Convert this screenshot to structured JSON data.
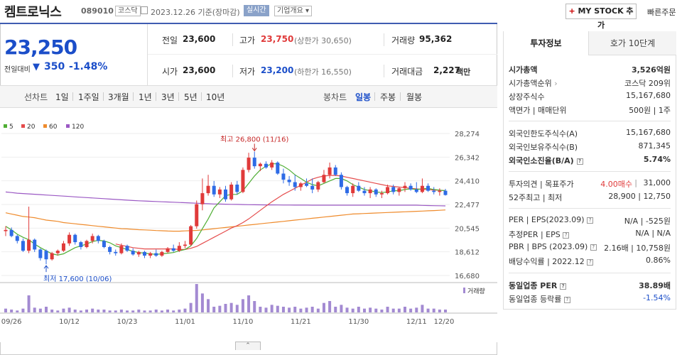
{
  "header": {
    "stock_name": "켐트로닉스",
    "stock_code": "089010",
    "market": "코스닥",
    "date_text": "2023.12.26 기준(장마감)",
    "realtime": "실시간",
    "company_overview": "기업개요 ▾",
    "mystock_plus": "+",
    "mystock": " MY STOCK 추가",
    "quick_order": "빠른주문"
  },
  "price": {
    "current": "23,250",
    "prev_diff_label": "전일대비",
    "arrow": "▼",
    "change": "350",
    "change_pct": "-1.48%"
  },
  "quote": {
    "prev_close_label": "전일",
    "prev_close": "23,600",
    "high_label": "고가",
    "high": "23,750",
    "upper_limit": "(상한가 30,650)",
    "volume_label": "거래량",
    "volume": "95,362",
    "open_label": "시가",
    "open": "23,600",
    "low_label": "저가",
    "low": "23,200",
    "lower_limit": "(하한가 16,550)",
    "amount_label": "거래대금",
    "amount": "2,227",
    "amount_unit": "백만"
  },
  "periods": {
    "line_chart": "선차트",
    "line_items": [
      "1일",
      "1주일",
      "3개월",
      "1년",
      "3년",
      "5년",
      "10년"
    ],
    "candle_chart": "봉차트",
    "candle_items": [
      "일봉",
      "주봉",
      "월봉"
    ]
  },
  "colors": {
    "up": "#e03a3a",
    "down": "#2e6be6",
    "accent": "#3f5cb1",
    "ma5": "#4fae34",
    "ma20": "#e54b4b",
    "ma60": "#ef8b2c",
    "ma120": "#9b59c4",
    "volume": "#a38ad2"
  },
  "chart_data": {
    "type": "candlestick",
    "legend": [
      "5",
      "20",
      "60",
      "120"
    ],
    "y_ticks": [
      "28,274",
      "26,342",
      "24,410",
      "22,477",
      "20,545",
      "18,612",
      "16,680"
    ],
    "ylim": [
      16680,
      28274
    ],
    "x_labels": [
      "09/26",
      "10/12",
      "10/23",
      "11/01",
      "11/10",
      "11/21",
      "11/30",
      "12/11",
      "12/20"
    ],
    "high_annotation": "최고 26,800 (11/16)",
    "low_annotation": "최저 17,600 (10/06)",
    "volume_label": "거래량",
    "candles": [
      [
        20300,
        20700,
        19900,
        20400
      ],
      [
        20400,
        20600,
        19800,
        19900
      ],
      [
        19900,
        20000,
        19300,
        19500
      ],
      [
        19500,
        19700,
        18600,
        18700
      ],
      [
        18700,
        22300,
        18500,
        19600
      ],
      [
        19600,
        19700,
        18600,
        18800
      ],
      [
        18800,
        18900,
        17900,
        18100
      ],
      [
        18700,
        18800,
        17600,
        18000
      ],
      [
        18000,
        18600,
        17900,
        18500
      ],
      [
        18500,
        18800,
        18300,
        18700
      ],
      [
        18700,
        19500,
        18600,
        19300
      ],
      [
        19300,
        20200,
        19100,
        20000
      ],
      [
        20000,
        20100,
        19200,
        19400
      ],
      [
        19400,
        19500,
        18800,
        19000
      ],
      [
        19000,
        19600,
        18900,
        19500
      ],
      [
        19500,
        20100,
        19300,
        19900
      ],
      [
        19900,
        20000,
        19300,
        19500
      ],
      [
        19500,
        19600,
        18900,
        19000
      ],
      [
        19000,
        19100,
        18400,
        18600
      ],
      [
        18600,
        18800,
        18300,
        18500
      ],
      [
        18500,
        19300,
        18400,
        19100
      ],
      [
        19100,
        19200,
        18600,
        18700
      ],
      [
        18700,
        18900,
        18300,
        18400
      ],
      [
        18400,
        18700,
        18200,
        18600
      ],
      [
        18600,
        18700,
        18100,
        18300
      ],
      [
        18300,
        18600,
        18100,
        18500
      ],
      [
        18500,
        18800,
        18200,
        18300
      ],
      [
        18300,
        18700,
        18200,
        18600
      ],
      [
        18600,
        19000,
        18500,
        18900
      ],
      [
        18900,
        19200,
        18600,
        18700
      ],
      [
        18700,
        19400,
        18600,
        19100
      ],
      [
        19100,
        19500,
        18900,
        19200
      ],
      [
        19200,
        20800,
        19100,
        20700
      ],
      [
        20700,
        22800,
        20500,
        22500
      ],
      [
        22500,
        24600,
        22000,
        23400
      ],
      [
        23400,
        24900,
        23200,
        24000
      ],
      [
        24000,
        24400,
        23100,
        23300
      ],
      [
        23300,
        23900,
        23000,
        23700
      ],
      [
        23700,
        24000,
        22700,
        22900
      ],
      [
        22900,
        24300,
        22800,
        24100
      ],
      [
        24100,
        24400,
        23300,
        23500
      ],
      [
        23500,
        25500,
        23400,
        25300
      ],
      [
        25300,
        26700,
        25100,
        26300
      ],
      [
        26300,
        26800,
        25400,
        25600
      ],
      [
        25600,
        25900,
        25200,
        25800
      ],
      [
        25800,
        26000,
        25400,
        25500
      ],
      [
        25500,
        26100,
        25300,
        25900
      ],
      [
        25900,
        26000,
        24900,
        25000
      ],
      [
        25000,
        25400,
        24200,
        24500
      ],
      [
        24500,
        24800,
        24000,
        24300
      ],
      [
        24300,
        24900,
        23600,
        23900
      ],
      [
        23900,
        24300,
        23600,
        24200
      ],
      [
        24200,
        24600,
        23900,
        24000
      ],
      [
        24000,
        24600,
        23400,
        23700
      ],
      [
        23700,
        24400,
        23500,
        24300
      ],
      [
        24300,
        25300,
        24200,
        24900
      ],
      [
        24900,
        25900,
        24600,
        25500
      ],
      [
        25500,
        25700,
        24800,
        24900
      ],
      [
        24900,
        25100,
        23700,
        23900
      ],
      [
        23900,
        24000,
        23200,
        23400
      ],
      [
        23400,
        24200,
        23100,
        24000
      ],
      [
        24000,
        24300,
        23500,
        23600
      ],
      [
        23600,
        23900,
        23200,
        23400
      ],
      [
        23400,
        23900,
        23000,
        23700
      ],
      [
        23700,
        23800,
        23100,
        23300
      ],
      [
        23300,
        23600,
        23000,
        23400
      ],
      [
        23400,
        24100,
        23300,
        23900
      ],
      [
        23900,
        24100,
        23300,
        23500
      ],
      [
        23500,
        23900,
        23200,
        23800
      ],
      [
        23800,
        24300,
        23500,
        24000
      ],
      [
        24000,
        24200,
        23600,
        23700
      ],
      [
        23700,
        24300,
        23400,
        23500
      ],
      [
        23500,
        24600,
        23400,
        24000
      ],
      [
        24000,
        24200,
        23500,
        23600
      ],
      [
        23600,
        23900,
        23300,
        23500
      ],
      [
        23500,
        23800,
        23200,
        23600
      ],
      [
        23600,
        23750,
        23200,
        23250
      ]
    ],
    "volumes": [
      4,
      3,
      2,
      4,
      18,
      5,
      4,
      6,
      3,
      2,
      4,
      5,
      3,
      2,
      3,
      4,
      3,
      3,
      2,
      2,
      3,
      2,
      2,
      3,
      2,
      2,
      3,
      2,
      3,
      2,
      3,
      4,
      10,
      30,
      20,
      14,
      6,
      7,
      9,
      10,
      8,
      14,
      18,
      12,
      6,
      5,
      8,
      7,
      6,
      5,
      6,
      4,
      5,
      6,
      4,
      10,
      12,
      6,
      8,
      5,
      4,
      6,
      4,
      5,
      4,
      3,
      6,
      4,
      4,
      6,
      4,
      5,
      8,
      4,
      4,
      3,
      3
    ],
    "ma5": [
      20700,
      20400,
      20050,
      19800,
      19600,
      19250,
      18950,
      18700,
      18450,
      18350,
      18450,
      18700,
      18950,
      19100,
      19250,
      19450,
      19550,
      19500,
      19350,
      19100,
      18950,
      18800,
      18650,
      18550,
      18500,
      18450,
      18400,
      18450,
      18500,
      18550,
      18700,
      18800,
      19100,
      19700,
      20500,
      21300,
      22200,
      22700,
      23200,
      23300,
      23300,
      23600,
      24200,
      24800,
      25300,
      25600,
      25800,
      25800,
      25600,
      25300,
      24900,
      24600,
      24300,
      24100,
      24000,
      24200,
      24400,
      24600,
      24600,
      24400,
      24100,
      23900,
      23700,
      23600,
      23500,
      23450,
      23500,
      23600,
      23600,
      23700,
      23750,
      23700,
      23750,
      23800,
      23700,
      23650,
      23600
    ],
    "ma20": [
      null,
      null,
      null,
      null,
      null,
      null,
      null,
      null,
      null,
      null,
      null,
      null,
      null,
      null,
      null,
      null,
      null,
      null,
      null,
      19250,
      19150,
      19050,
      18950,
      18900,
      18850,
      18850,
      18850,
      18850,
      18850,
      18850,
      18800,
      18800,
      18900,
      19050,
      19300,
      19550,
      19800,
      20050,
      20300,
      20550,
      20750,
      21000,
      21300,
      21650,
      22000,
      22350,
      22700,
      23000,
      23300,
      23550,
      23800,
      24050,
      24300,
      24550,
      24700,
      24800,
      24850,
      24850,
      24800,
      24700,
      24600,
      24500,
      24400,
      24300,
      24200,
      24100,
      24000,
      23950,
      23900,
      23850,
      23800,
      23750,
      23700,
      23700,
      23650,
      23650,
      23600
    ],
    "ma60": [
      21800,
      21700,
      21600,
      21500,
      21450,
      21400,
      21300,
      21200,
      21150,
      21100,
      21000,
      20950,
      20900,
      20850,
      20800,
      20750,
      20700,
      20650,
      20600,
      20550,
      20500,
      20480,
      20450,
      20420,
      20400,
      20380,
      20350,
      20330,
      20310,
      20300,
      20300,
      20320,
      20340,
      20360,
      20400,
      20450,
      20500,
      20550,
      20600,
      20650,
      20700,
      20750,
      20800,
      20850,
      20900,
      20950,
      21000,
      21050,
      21100,
      21150,
      21200,
      21250,
      21300,
      21350,
      21400,
      21450,
      21500,
      21550,
      21600,
      21650,
      21700,
      21720,
      21740,
      21760,
      21780,
      21800,
      21820,
      21840,
      21860,
      21880,
      21900,
      21920,
      21940,
      21960,
      21980,
      22000,
      22030
    ],
    "ma120": [
      23500,
      23450,
      23400,
      23370,
      23340,
      23310,
      23280,
      23250,
      23220,
      23190,
      23160,
      23130,
      23100,
      23070,
      23040,
      23010,
      22980,
      22950,
      22920,
      22890,
      22860,
      22830,
      22800,
      22780,
      22760,
      22740,
      22720,
      22700,
      22680,
      22660,
      22640,
      22620,
      22600,
      22580,
      22560,
      22540,
      22520,
      22510,
      22500,
      22490,
      22480,
      22470,
      22460,
      22455,
      22450,
      22445,
      22440,
      22435,
      22430,
      22428,
      22426,
      22424,
      22422,
      22420,
      22420,
      22420,
      22420,
      22420,
      22420,
      22420,
      22420,
      22420,
      22420,
      22420,
      22420,
      22420,
      22420,
      22420,
      22420,
      22420,
      22420,
      22420,
      22400,
      22390,
      22380,
      22370,
      22360
    ]
  },
  "invest": {
    "tab_invest": "투자정보",
    "tab_orderbook": "호가 10단계",
    "market_cap_label": "시가총액",
    "market_cap": "3,526억원",
    "market_cap_rank_label": "시가총액순위",
    "market_cap_rank": "코스닥 209위",
    "shares_label": "상장주식수",
    "shares": "15,167,680",
    "par_label": "액면가 | 매매단위",
    "par": "500원 | 1주",
    "foreign_limit_label": "외국인한도주식수(A)",
    "foreign_limit": "15,167,680",
    "foreign_hold_label": "외국인보유주식수(B)",
    "foreign_hold": "871,345",
    "foreign_ratio_label": "외국인소진율(B/A)",
    "foreign_ratio": "5.74%",
    "opinion_label": "투자의견 | 목표주가",
    "opinion": "4.00매수",
    "target": "31,000",
    "w52_label": "52주최고 | 최저",
    "w52": "28,900 | 12,750",
    "per_label": "PER | EPS(2023.09)",
    "per": "N/A | -525원",
    "est_per_label": "추정PER | EPS",
    "est_per": "N/A | N/A",
    "pbr_label": "PBR | BPS (2023.09)",
    "pbr": "2.16배 | 10,758원",
    "div_label": "배당수익률 | 2022.12",
    "div": "0.86%",
    "sector_per_label": "동일업종 PER",
    "sector_per": "38.89배",
    "sector_rate_label": "동일업종 등락률",
    "sector_rate": "-1.54%"
  }
}
